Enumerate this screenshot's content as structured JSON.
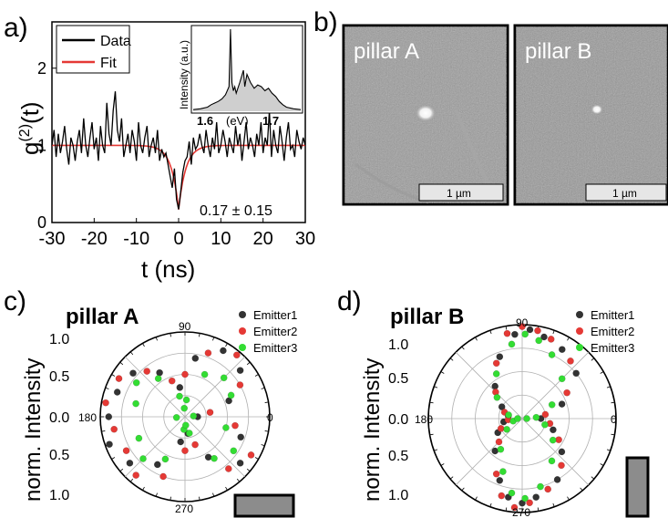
{
  "panels": {
    "a": "a)",
    "b": "b)",
    "c": "c)",
    "d": "d)"
  },
  "chart_data": [
    {
      "type": "line",
      "panel": "a",
      "xlabel": "t (ns)",
      "ylabel": "g(2)(t)",
      "xlim": [
        -30,
        30
      ],
      "ylim": [
        0,
        2.6
      ],
      "xticks": [
        -30,
        -20,
        -10,
        0,
        10,
        20,
        30
      ],
      "yticks": [
        0,
        1,
        2
      ],
      "legend": {
        "placement": "top-left",
        "items": [
          "Data",
          "Fit"
        ]
      },
      "annotation": "0.17 ± 0.15",
      "series": [
        {
          "name": "Data",
          "color": "#000000",
          "x": [
            -30,
            -29.5,
            -29,
            -28.5,
            -28,
            -27.5,
            -27,
            -26.5,
            -26,
            -25.5,
            -25,
            -24.5,
            -24,
            -23.5,
            -23,
            -22.5,
            -22,
            -21.5,
            -21,
            -20.5,
            -20,
            -19.5,
            -19,
            -18.5,
            -18,
            -17.5,
            -17,
            -16.5,
            -16,
            -15.5,
            -15,
            -14.5,
            -14,
            -13.5,
            -13,
            -12.5,
            -12,
            -11.5,
            -11,
            -10.5,
            -10,
            -9.5,
            -9,
            -8.5,
            -8,
            -7.5,
            -7,
            -6.5,
            -6,
            -5.5,
            -5,
            -4.5,
            -4,
            -3.5,
            -3,
            -2.5,
            -2,
            -1.5,
            -1,
            -0.5,
            0,
            0.5,
            1,
            1.5,
            2,
            2.5,
            3,
            3.5,
            4,
            4.5,
            5,
            5.5,
            6,
            6.5,
            7,
            7.5,
            8,
            8.5,
            9,
            9.5,
            10,
            10.5,
            11,
            11.5,
            12,
            12.5,
            13,
            13.5,
            14,
            14.5,
            15,
            15.5,
            16,
            16.5,
            17,
            17.5,
            18,
            18.5,
            19,
            19.5,
            20,
            20.5,
            21,
            21.5,
            22,
            22.5,
            23,
            23.5,
            24,
            24.5,
            25,
            25.5,
            26,
            26.5,
            27,
            27.5,
            28,
            28.5,
            29,
            29.5,
            30
          ],
          "y": [
            1.0,
            1.2,
            0.85,
            1.15,
            0.9,
            1.05,
            1.25,
            0.95,
            0.75,
            1.1,
            1.0,
            0.8,
            1.05,
            1.2,
            0.9,
            1.35,
            1.0,
            0.85,
            1.1,
            1.3,
            0.95,
            1.1,
            0.8,
            1.25,
            1.0,
            0.9,
            1.55,
            1.15,
            1.0,
            1.45,
            1.7,
            1.2,
            1.05,
            1.35,
            0.85,
            1.0,
            1.15,
            0.9,
            1.2,
            1.05,
            0.8,
            1.3,
            1.0,
            0.9,
            1.1,
            1.25,
            0.85,
            1.0,
            1.1,
            0.9,
            1.2,
            0.8,
            0.95,
            0.85,
            0.9,
            0.75,
            0.6,
            0.45,
            0.7,
            0.3,
            0.17,
            0.4,
            0.65,
            0.8,
            0.85,
            1.05,
            0.75,
            1.1,
            0.95,
            1.0,
            1.15,
            1.0,
            0.9,
            1.2,
            1.0,
            0.85,
            1.1,
            0.95,
            1.3,
            0.9,
            1.0,
            1.2,
            1.05,
            0.85,
            1.1,
            1.0,
            0.9,
            1.25,
            1.0,
            1.15,
            0.8,
            1.05,
            1.3,
            0.95,
            1.1,
            1.0,
            0.85,
            1.15,
            1.0,
            1.3,
            0.9,
            1.1,
            1.0,
            1.45,
            0.85,
            1.2,
            1.0,
            0.9,
            1.25,
            1.05,
            0.8,
            1.1,
            1.3,
            0.95,
            1.0,
            0.85,
            1.2,
            1.05,
            0.95,
            1.1,
            1.0
          ]
        },
        {
          "name": "Fit",
          "color": "#e53935",
          "model": "1 - 0.83*exp(-|t|/1.7)"
        }
      ],
      "inset": {
        "ylabel": "Intensity (a.u.)",
        "xlabel": "(eV)",
        "xticks": [
          "1.6",
          "1.7"
        ],
        "xlim": [
          1.58,
          1.73
        ],
        "spectrum_x": [
          1.58,
          1.59,
          1.6,
          1.605,
          1.61,
          1.615,
          1.62,
          1.625,
          1.63,
          1.632,
          1.634,
          1.636,
          1.638,
          1.64,
          1.645,
          1.65,
          1.652,
          1.655,
          1.66,
          1.665,
          1.67,
          1.675,
          1.68,
          1.685,
          1.69,
          1.695,
          1.7,
          1.705,
          1.71,
          1.72,
          1.73
        ],
        "spectrum_y": [
          0.02,
          0.03,
          0.05,
          0.08,
          0.1,
          0.12,
          0.15,
          0.2,
          0.3,
          1.0,
          0.35,
          0.25,
          0.3,
          0.22,
          0.35,
          0.5,
          0.3,
          0.45,
          0.35,
          0.28,
          0.32,
          0.3,
          0.25,
          0.28,
          0.22,
          0.18,
          0.12,
          0.08,
          0.05,
          0.03,
          0.02
        ]
      }
    },
    {
      "type": "image",
      "panel": "b",
      "images": [
        {
          "label": "pillar A",
          "scalebar": "1 µm"
        },
        {
          "label": "pillar B",
          "scalebar": "1 µm"
        }
      ]
    },
    {
      "type": "scatter",
      "subtype": "polar",
      "panel": "c",
      "title": "pillar A",
      "ylabel": "norm. Intensity",
      "rticks": [
        "1.0",
        "0.5",
        "0.0",
        "0.5",
        "1.0"
      ],
      "angle_labels": [
        "90",
        "180",
        "0",
        "270"
      ],
      "legend": {
        "placement": "top-right"
      },
      "series": [
        {
          "name": "Emitter1",
          "color": "#333333",
          "theta": [
            0,
            20,
            40,
            60,
            80,
            100,
            120,
            140,
            160,
            180,
            200,
            220,
            240,
            260,
            280,
            300,
            320,
            340
          ],
          "r": [
            0.15,
            0.55,
            0.85,
            0.9,
            0.7,
            0.35,
            0.6,
            0.8,
            0.85,
            0.9,
            0.95,
            0.85,
            0.65,
            0.3,
            0.2,
            0.55,
            0.85,
            0.7
          ]
        },
        {
          "name": "Emitter2",
          "color": "#e53935",
          "theta": [
            10,
            30,
            50,
            70,
            90,
            110,
            130,
            150,
            170,
            190,
            210,
            230,
            250,
            270,
            290,
            310,
            330,
            350
          ],
          "r": [
            0.3,
            0.75,
            0.95,
            0.8,
            0.5,
            0.45,
            0.7,
            0.9,
            0.95,
            0.85,
            0.8,
            0.9,
            0.75,
            0.4,
            0.35,
            0.8,
            0.9,
            0.6
          ]
        },
        {
          "name": "Emitter3",
          "color": "#33dd33",
          "theta": [
            5,
            25,
            45,
            65,
            85,
            105,
            125,
            145,
            165,
            185,
            205,
            225,
            245,
            265,
            285,
            305,
            325,
            345,
            95,
            275
          ],
          "r": [
            0.1,
            0.6,
            0.65,
            0.55,
            0.2,
            0.25,
            0.55,
            0.7,
            0.6,
            0.1,
            0.6,
            0.7,
            0.55,
            0.15,
            0.2,
            0.6,
            0.7,
            0.5,
            0.1,
            0.1
          ]
        }
      ]
    },
    {
      "type": "scatter",
      "subtype": "polar",
      "panel": "d",
      "title": "pillar B",
      "ylabel": "norm. Intensity",
      "rticks": [
        "1.0",
        "0.5",
        "0.0",
        "0.5",
        "1.0"
      ],
      "angle_labels": [
        "90",
        "180",
        "0",
        "270"
      ],
      "legend": {
        "placement": "top-right"
      },
      "series": [
        {
          "name": "Emitter1",
          "color": "#333333",
          "theta": [
            0,
            20,
            40,
            60,
            75,
            85,
            95,
            110,
            130,
            150,
            170,
            190,
            210,
            230,
            250,
            260,
            270,
            280,
            300,
            320,
            340
          ],
          "r": [
            0.2,
            0.45,
            0.75,
            0.85,
            0.9,
            0.95,
            0.9,
            0.7,
            0.45,
            0.25,
            0.15,
            0.2,
            0.3,
            0.45,
            0.7,
            0.85,
            0.9,
            0.85,
            0.75,
            0.55,
            0.35
          ]
        },
        {
          "name": "Emitter2",
          "color": "#e53935",
          "theta": [
            10,
            30,
            50,
            70,
            80,
            90,
            100,
            115,
            135,
            160,
            185,
            205,
            225,
            245,
            255,
            265,
            275,
            290,
            310,
            330,
            350
          ],
          "r": [
            0.25,
            0.55,
            0.8,
            0.9,
            0.95,
            0.98,
            0.92,
            0.65,
            0.4,
            0.2,
            0.15,
            0.25,
            0.35,
            0.65,
            0.85,
            0.95,
            0.9,
            0.8,
            0.65,
            0.45,
            0.3
          ]
        },
        {
          "name": "Emitter3",
          "color": "#33dd33",
          "theta": [
            5,
            25,
            45,
            65,
            78,
            88,
            98,
            120,
            140,
            165,
            195,
            215,
            235,
            250,
            262,
            272,
            285,
            305,
            325,
            345,
            180,
            0
          ],
          "r": [
            0.15,
            0.35,
            0.6,
            0.75,
            0.85,
            0.9,
            0.8,
            0.55,
            0.35,
            0.15,
            0.1,
            0.2,
            0.4,
            0.6,
            0.8,
            0.85,
            0.75,
            0.55,
            0.4,
            0.25,
            0.05,
            0.05
          ]
        }
      ]
    }
  ]
}
